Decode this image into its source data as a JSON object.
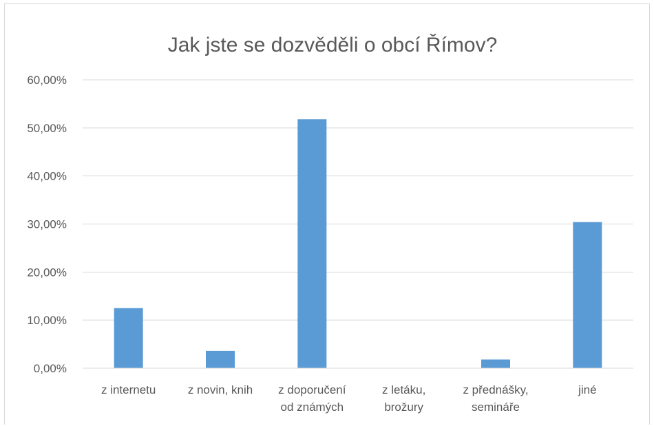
{
  "chart_data": {
    "type": "bar",
    "title": "Jak jste se dozvěděli o obcí Římov?",
    "categories": [
      [
        "z internetu"
      ],
      [
        "z novin, knih"
      ],
      [
        "z doporučení",
        "od známých"
      ],
      [
        "z letáku,",
        "brožury"
      ],
      [
        "z přednášky,",
        "semináře"
      ],
      [
        "jiné"
      ]
    ],
    "values": [
      12.5,
      3.6,
      51.8,
      0,
      1.8,
      30.4
    ],
    "ylim": [
      0,
      60
    ],
    "yticks": [
      "0,00%",
      "10,00%",
      "20,00%",
      "30,00%",
      "40,00%",
      "50,00%",
      "60,00%"
    ],
    "grid": true,
    "bar_color": "#5b9bd5"
  }
}
